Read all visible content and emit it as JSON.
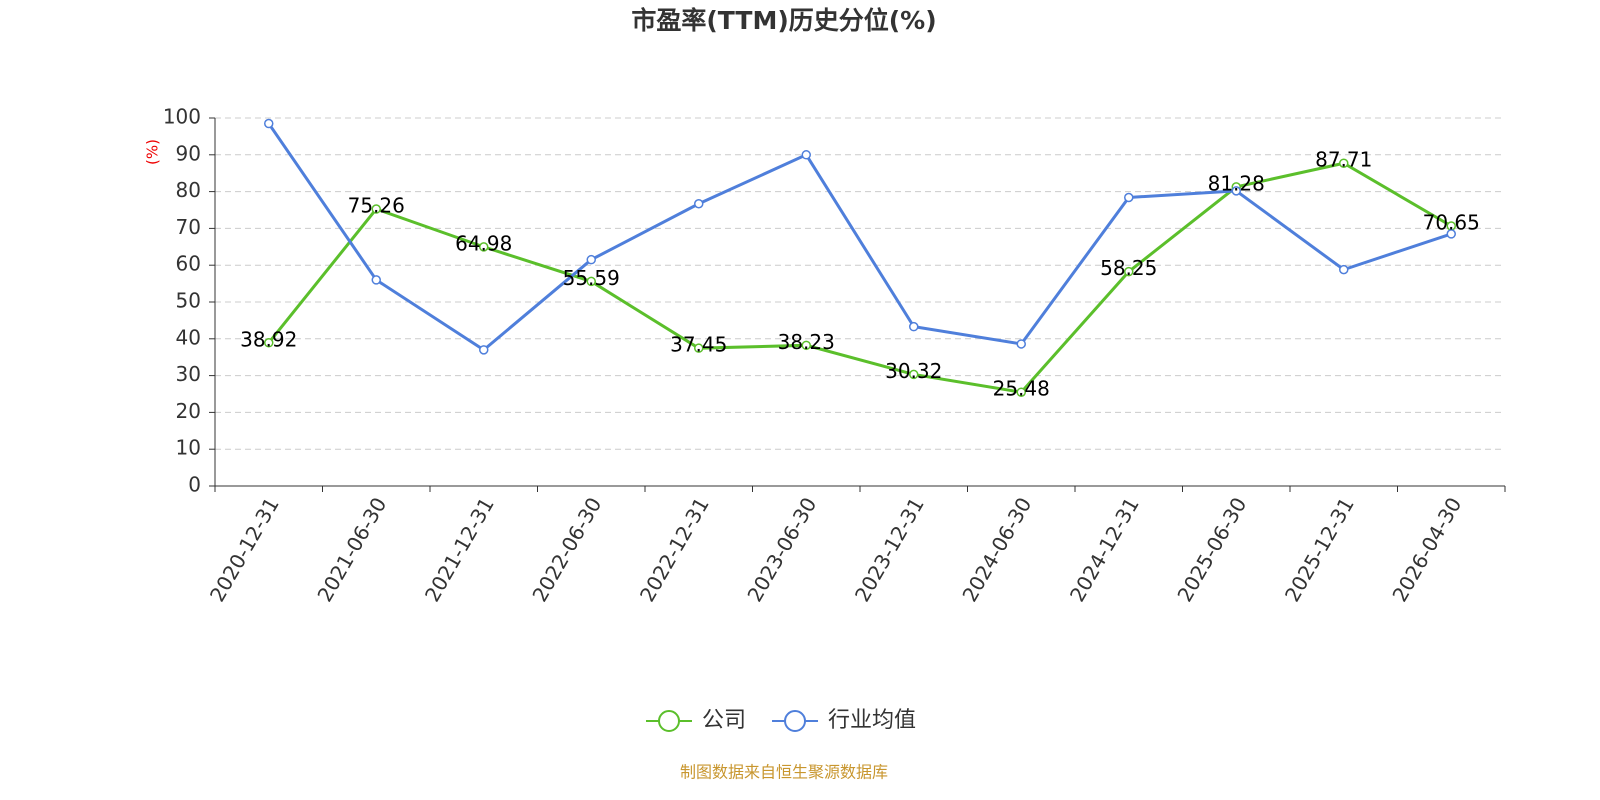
{
  "chart_data": {
    "type": "line",
    "title": "市盈率(TTM)历史分位(%)",
    "y_label": "(%)",
    "categories": [
      "2020-12-31",
      "2021-06-30",
      "2021-12-31",
      "2022-06-30",
      "2022-12-31",
      "2023-06-30",
      "2023-12-31",
      "2024-06-30",
      "2024-12-31",
      "2025-06-30",
      "2025-12-31",
      "2026-04-30"
    ],
    "series": [
      {
        "name": "公司",
        "color": "#5bbf2b",
        "show_labels": true,
        "values": [
          38.92,
          75.26,
          64.98,
          55.59,
          37.45,
          38.23,
          30.32,
          25.48,
          58.25,
          81.28,
          87.71,
          70.65
        ]
      },
      {
        "name": "行业均值",
        "color": "#4f7fdb",
        "show_labels": false,
        "values": [
          98.5,
          56,
          37,
          61.5,
          76.7,
          90,
          43.3,
          38.6,
          78.4,
          80.2,
          58.8,
          68.5
        ]
      }
    ],
    "ylim": [
      0,
      100
    ],
    "yticks": [
      0,
      10,
      20,
      30,
      40,
      50,
      60,
      70,
      80,
      90,
      100
    ],
    "grid": true,
    "legend": "bottom",
    "source": "制图数据来自恒生聚源数据库"
  }
}
